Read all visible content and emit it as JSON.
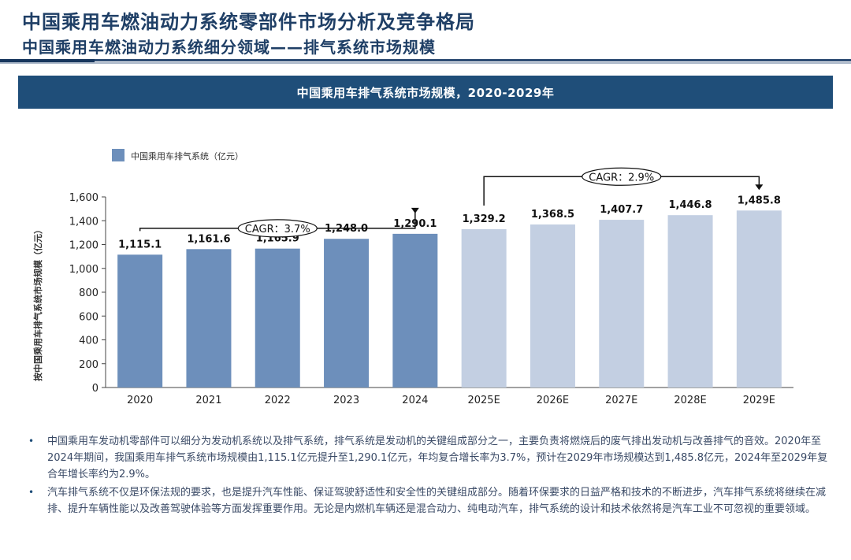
{
  "header": {
    "title": "中国乘用车燃油动力系统零部件市场分析及竞争格局",
    "subtitle": "中国乘用车燃油动力系统细分领域——排气系统市场规模"
  },
  "banner": {
    "text": "中国乘用车排气系统市场规模，2020-2029年"
  },
  "chart_data": {
    "type": "bar",
    "title": "中国乘用车排气系统市场规模，2020-2029年",
    "categories": [
      "2020",
      "2021",
      "2022",
      "2023",
      "2024",
      "2025E",
      "2026E",
      "2027E",
      "2028E",
      "2029E"
    ],
    "series": [
      {
        "name": "中国乘用车排气系统（亿元）",
        "values": [
          1115.1,
          1161.6,
          1165.9,
          1248.0,
          1290.1,
          1329.2,
          1368.5,
          1407.7,
          1446.8,
          1485.8
        ]
      }
    ],
    "value_labels": [
      "1,115.1",
      "1,161.6",
      "1,165.9",
      "1,248.0",
      "1,290.1",
      "1,329.2",
      "1,368.5",
      "1,407.7",
      "1,446.8",
      "1,485.8"
    ],
    "ylabel": "按中国乘用车排气系统市场规模（亿元）",
    "ylim": [
      0,
      1600
    ],
    "yticks": [
      0,
      200,
      400,
      600,
      800,
      1000,
      1200,
      1400,
      1600
    ],
    "ytick_labels": [
      "0",
      "200",
      "400",
      "600",
      "800",
      "1,000",
      "1,200",
      "1,400",
      "1,600"
    ],
    "grid": false,
    "legend_position": "top-left",
    "colors": {
      "actual": "#6d8fbb",
      "forecast": "#c3cfe2",
      "legend": "#6d8fbb"
    },
    "annotations": [
      {
        "text": "CAGR：3.7%",
        "from": "2020",
        "to": "2024"
      },
      {
        "text": "CAGR：2.9%",
        "from": "2025E",
        "to": "2029E"
      }
    ]
  },
  "notes": [
    "中国乘用车发动机零部件可以细分为发动机系统以及排气系统，排气系统是发动机的关键组成部分之一，主要负责将燃烧后的废气排出发动机与改善排气的音效。2020年至2024年期间，我国乘用车排气系统市场规模由1,115.1亿元提升至1,290.1亿元，年均复合增长率为3.7%，预计在2029年市场规模达到1,485.8亿元，2024年至2029年复合年增长率约为2.9%。",
    "汽车排气系统不仅是环保法规的要求，也是提升汽车性能、保证驾驶舒适性和安全性的关键组成部分。随着环保要求的日益严格和技术的不断进步，汽车排气系统将继续在减排、提升车辆性能以及改善驾驶体验等方面发挥重要作用。无论是内燃机车辆还是混合动力、纯电动汽车，排气系统的设计和技术依然将是汽车工业不可忽视的重要领域。"
  ]
}
